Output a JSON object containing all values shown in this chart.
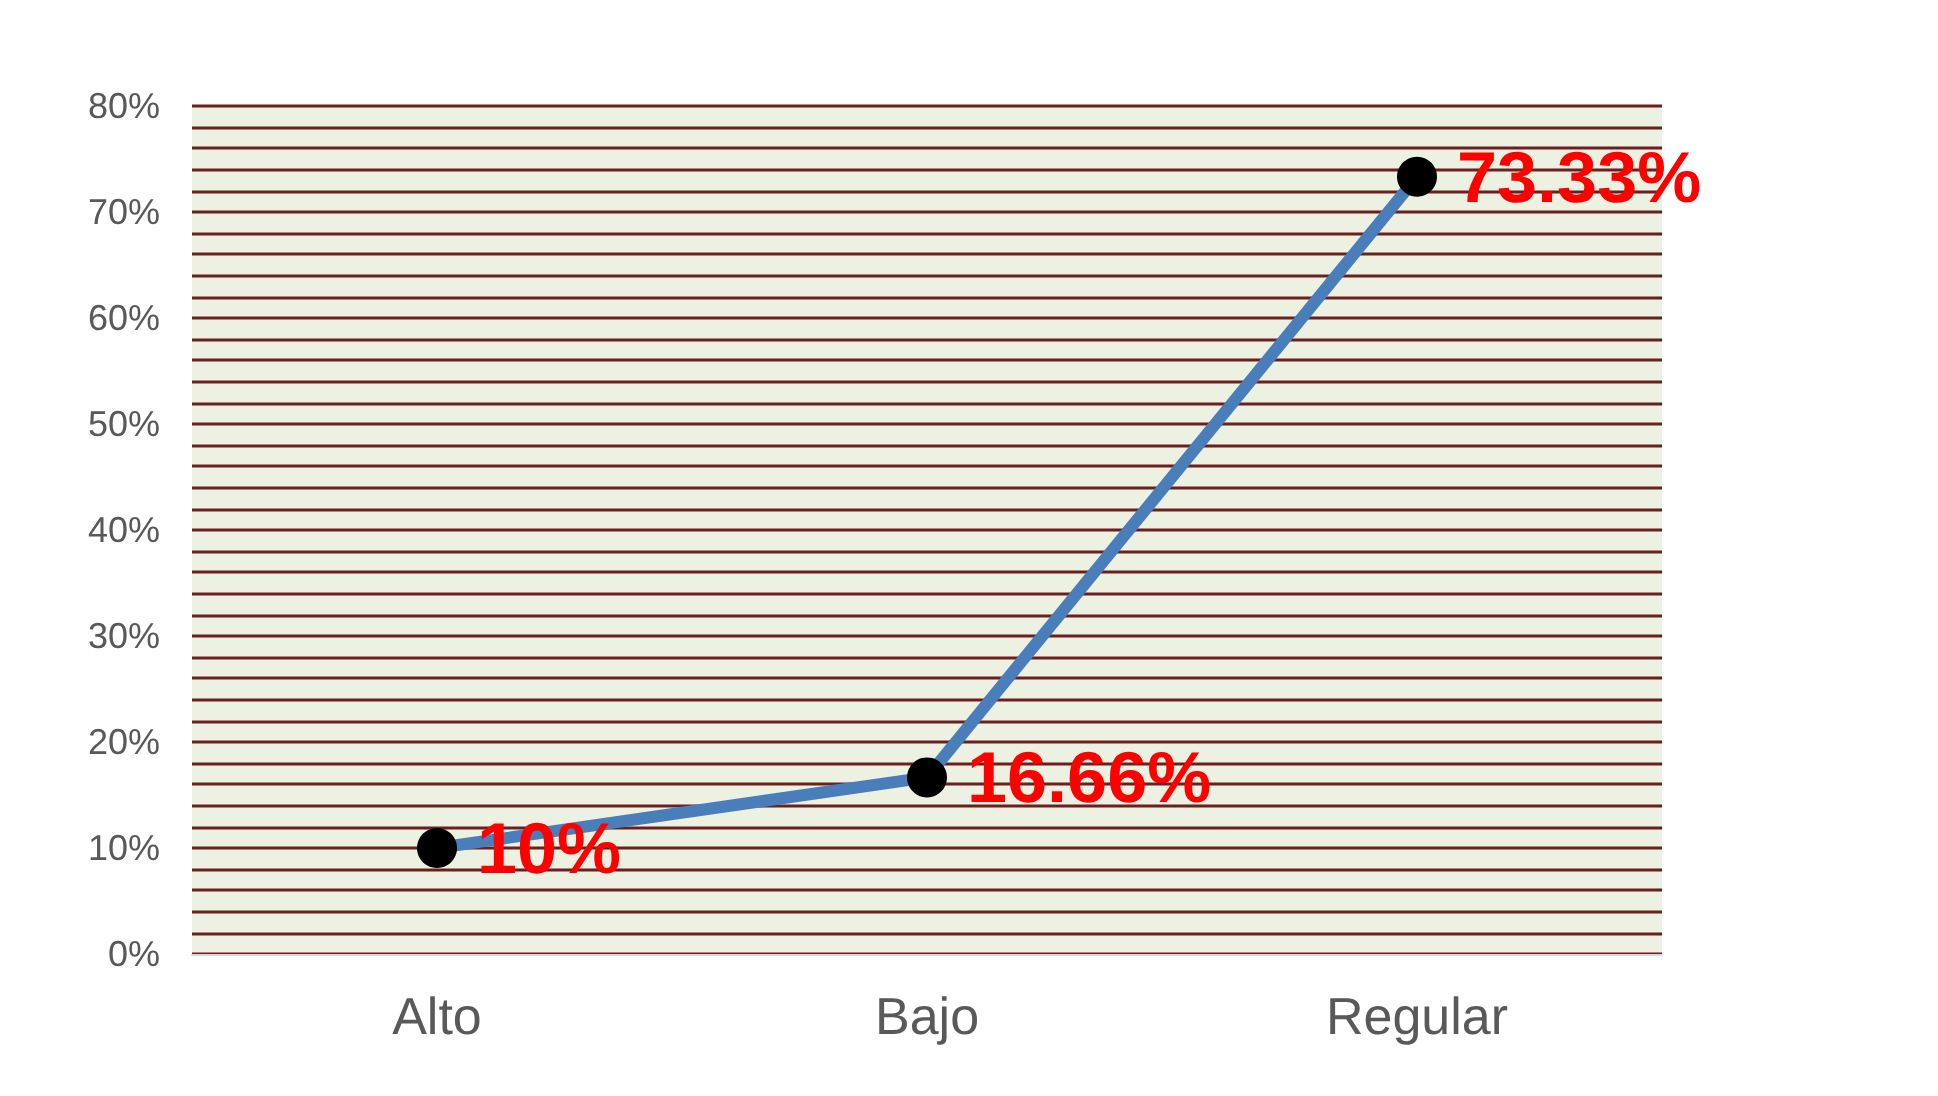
{
  "chart_data": {
    "type": "line",
    "categories": [
      "Alto",
      "Bajo",
      "Regular"
    ],
    "series": [
      {
        "color": "#4a7ebb",
        "values": [
          10,
          16.66,
          73.33
        ],
        "value_labels": [
          "10%",
          "16.66%",
          "73.33%"
        ]
      }
    ],
    "ylim": [
      0,
      80
    ],
    "yticks": [
      {
        "value": 0,
        "label": "0%"
      },
      {
        "value": 2,
        "label": null
      },
      {
        "value": 4,
        "label": null
      },
      {
        "value": 6,
        "label": null
      },
      {
        "value": 8,
        "label": null
      },
      {
        "value": 10,
        "label": "10%"
      },
      {
        "value": 12,
        "label": null
      },
      {
        "value": 14,
        "label": null
      },
      {
        "value": 16,
        "label": null
      },
      {
        "value": 18,
        "label": null
      },
      {
        "value": 20,
        "label": "20%"
      },
      {
        "value": 22,
        "label": null
      },
      {
        "value": 24,
        "label": null
      },
      {
        "value": 26,
        "label": null
      },
      {
        "value": 28,
        "label": null
      },
      {
        "value": 30,
        "label": "30%"
      },
      {
        "value": 32,
        "label": null
      },
      {
        "value": 34,
        "label": null
      },
      {
        "value": 36,
        "label": null
      },
      {
        "value": 38,
        "label": null
      },
      {
        "value": 40,
        "label": "40%"
      },
      {
        "value": 42,
        "label": null
      },
      {
        "value": 44,
        "label": null
      },
      {
        "value": 46,
        "label": null
      },
      {
        "value": 48,
        "label": null
      },
      {
        "value": 50,
        "label": "50%"
      },
      {
        "value": 52,
        "label": null
      },
      {
        "value": 54,
        "label": null
      },
      {
        "value": 56,
        "label": null
      },
      {
        "value": 58,
        "label": null
      },
      {
        "value": 60,
        "label": "60%"
      },
      {
        "value": 62,
        "label": null
      },
      {
        "value": 64,
        "label": null
      },
      {
        "value": 66,
        "label": null
      },
      {
        "value": 68,
        "label": null
      },
      {
        "value": 70,
        "label": "70%"
      },
      {
        "value": 72,
        "label": null
      },
      {
        "value": 74,
        "label": null
      },
      {
        "value": 76,
        "label": null
      },
      {
        "value": 78,
        "label": null
      },
      {
        "value": 80,
        "label": "80%"
      }
    ],
    "grid": "y",
    "marker": "circle",
    "line_style": "solid"
  }
}
